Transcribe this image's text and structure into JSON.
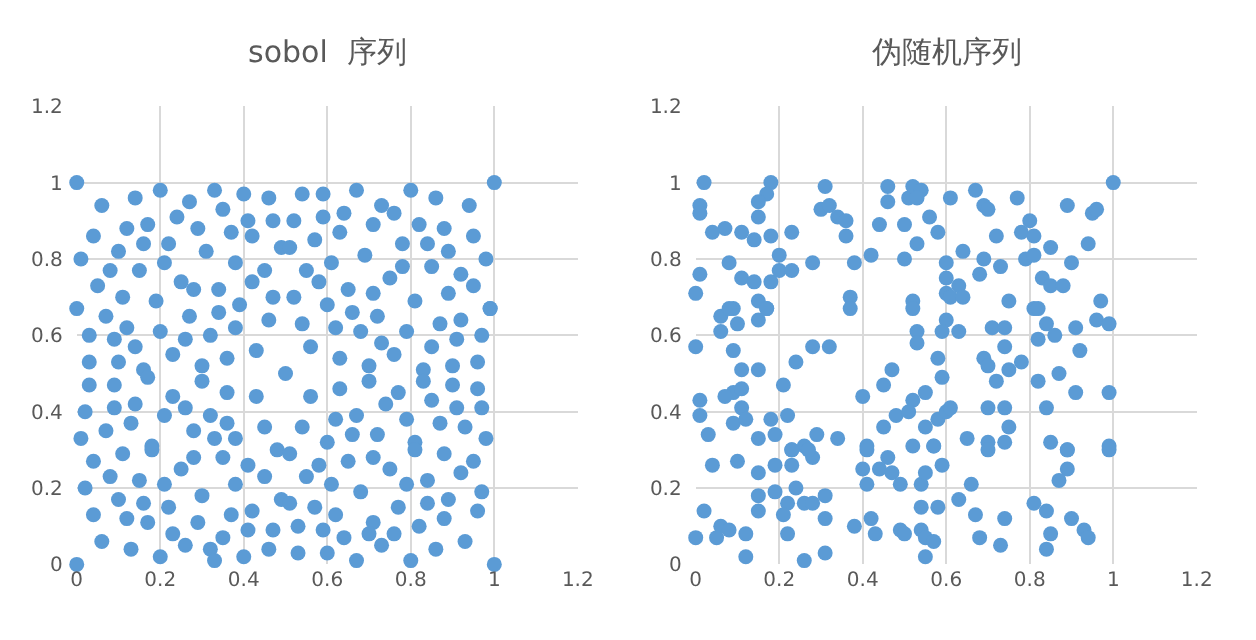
{
  "chart_data": [
    {
      "type": "scatter",
      "title": "sobol  序列",
      "xlim": [
        0,
        1.2
      ],
      "ylim": [
        0,
        1.2
      ],
      "xticks": [
        0,
        0.2,
        0.4,
        0.6,
        0.8,
        1,
        1.2
      ],
      "yticks": [
        0,
        0.2,
        0.4,
        0.6,
        0.8,
        1,
        1.2
      ],
      "grid": true,
      "marker": "circle",
      "series": [
        {
          "color": "#5b9bd5",
          "x": [
            0,
            1,
            0.06,
            0.14,
            0.2,
            0.27,
            0.33,
            0.4,
            0.46,
            0.54,
            0.59,
            0.67,
            0.73,
            0.8,
            0.86,
            0.94,
            0.04,
            0.12,
            0.17,
            0.24,
            0.29,
            0.35,
            0.41,
            0.47,
            0.52,
            0.59,
            0.64,
            0.71,
            0.76,
            0.82,
            0.88,
            0.95,
            0.1,
            0.16,
            0.22,
            0.31,
            0.37,
            0.42,
            0.49,
            0.51,
            0.57,
            0.63,
            0.69,
            0.78,
            0.84,
            0.89,
            0.98,
            0.01,
            0.08,
            0.15,
            0.21,
            0.25,
            0.28,
            0.34,
            0.38,
            0.42,
            0.45,
            0.47,
            0.52,
            0.55,
            0.58,
            0.61,
            0.65,
            0.71,
            0.75,
            0.78,
            0.81,
            0.85,
            0.89,
            0.92,
            0.95,
            0.05,
            0.11,
            0.19,
            0.6,
            0,
            0.99,
            0.39,
            0.07,
            0.12,
            0.27,
            0.34,
            0.46,
            0.54,
            0.66,
            0.72,
            0.87,
            0.92,
            0.99,
            0.03,
            0.09,
            0.14,
            0.2,
            0.26,
            0.32,
            0.38,
            0.62,
            0.68,
            0.73,
            0.79,
            0.85,
            0.91,
            0.97,
            0.03,
            0.1,
            0.16,
            0.23,
            0.3,
            0.36,
            0.43,
            0.56,
            0.63,
            0.7,
            0.76,
            0.83,
            0.9,
            0.96,
            0.03,
            0.09,
            0.17,
            0.3,
            0.36,
            0.5,
            0.63,
            0.7,
            0.77,
            0.83,
            0.9,
            0.96,
            0.02,
            0.09,
            0.14,
            0.23,
            0.26,
            0.43,
            0.56,
            0.74,
            0.85,
            0.91,
            0.97,
            0.07,
            0.13,
            0.21,
            0.28,
            0.32,
            0.36,
            0.45,
            0.54,
            0.62,
            0.67,
            0.72,
            0.79,
            0.87,
            0.93,
            0.01,
            0.33,
            0.38,
            0.6,
            0.66,
            0.81,
            0.98,
            0.18,
            0.04,
            0.11,
            0.18,
            0.25,
            0.28,
            0.35,
            0.41,
            0.48,
            0.51,
            0.45,
            0.55,
            0.58,
            0.65,
            0.71,
            0.75,
            0.81,
            0.88,
            0.92,
            0.95,
            0.08,
            0.15,
            0.02,
            0.21,
            0.3,
            0.38,
            0.49,
            0.51,
            0.61,
            0.68,
            0.79,
            0.84,
            0.97,
            0.04,
            0.1,
            0.16,
            0.22,
            0.29,
            0.37,
            0.42,
            0.57,
            0.62,
            0.71,
            0.77,
            0.84,
            0.89,
            0.96,
            0.12,
            0.17,
            0.23,
            0.26,
            0.35,
            0.41,
            0.47,
            0.53,
            0.59,
            0.64,
            0.7,
            0.76,
            0.82,
            0.88,
            0.06,
            0.13,
            0.32,
            0.4,
            0.46,
            0.53,
            0.6,
            0.73,
            0.86,
            0.93,
            0,
            0.2,
            0.33,
            0.67,
            0.8,
            1
          ],
          "values": [
            1,
            1,
            0.94,
            0.96,
            0.98,
            0.95,
            0.98,
            0.97,
            0.96,
            0.97,
            0.97,
            0.98,
            0.94,
            0.98,
            0.96,
            0.94,
            0.86,
            0.88,
            0.89,
            0.91,
            0.88,
            0.93,
            0.9,
            0.9,
            0.9,
            0.91,
            0.92,
            0.89,
            0.92,
            0.89,
            0.88,
            0.86,
            0.82,
            0.84,
            0.84,
            0.82,
            0.87,
            0.86,
            0.83,
            0.83,
            0.85,
            0.87,
            0.81,
            0.84,
            0.84,
            0.82,
            0.8,
            0.8,
            0.77,
            0.77,
            0.79,
            0.74,
            0.72,
            0.72,
            0.79,
            0.74,
            0.77,
            0.7,
            0.7,
            0.77,
            0.74,
            0.79,
            0.72,
            0.71,
            0.75,
            0.78,
            0.69,
            0.78,
            0.71,
            0.76,
            0.73,
            0.73,
            0.7,
            0.69,
            0.68,
            0.67,
            0.67,
            0.68,
            0.65,
            0.62,
            0.65,
            0.66,
            0.64,
            0.63,
            0.66,
            0.65,
            0.63,
            0.64,
            0.67,
            0.6,
            0.59,
            0.57,
            0.61,
            0.59,
            0.6,
            0.62,
            0.62,
            0.61,
            0.58,
            0.61,
            0.57,
            0.59,
            0.6,
            0.53,
            0.53,
            0.51,
            0.55,
            0.52,
            0.54,
            0.56,
            0.57,
            0.54,
            0.52,
            0.55,
            0.51,
            0.52,
            0.53,
            0.47,
            0.47,
            0.49,
            0.48,
            0.45,
            0.5,
            0.46,
            0.48,
            0.45,
            0.48,
            0.47,
            0.46,
            0.4,
            0.41,
            0.42,
            0.44,
            0.41,
            0.44,
            0.44,
            0.42,
            0.43,
            0.41,
            0.41,
            0.35,
            0.37,
            0.39,
            0.35,
            0.39,
            0.37,
            0.36,
            0.36,
            0.38,
            0.39,
            0.34,
            0.38,
            0.37,
            0.36,
            0.33,
            0.33,
            0.33,
            0.32,
            0.34,
            0.32,
            0.33,
            0.31,
            0.27,
            0.29,
            0.3,
            0.25,
            0.28,
            0.28,
            0.26,
            0.3,
            0.29,
            0.23,
            0.23,
            0.26,
            0.27,
            0.28,
            0.25,
            0.3,
            0.29,
            0.24,
            0.27,
            0.23,
            0.22,
            0.2,
            0.21,
            0.18,
            0.21,
            0.17,
            0.16,
            0.21,
            0.19,
            0.21,
            0.22,
            0.19,
            0.13,
            0.17,
            0.16,
            0.15,
            0.11,
            0.13,
            0.14,
            0.15,
            0.13,
            0.11,
            0.15,
            0.16,
            0.17,
            0.14,
            0.12,
            0.11,
            0.08,
            0.05,
            0.07,
            0.09,
            0.09,
            0.1,
            0.09,
            0.07,
            0.08,
            0.08,
            0.1,
            0.12,
            0.06,
            0.04,
            0.04,
            0.02,
            0.04,
            0.03,
            0.03,
            0.05,
            0.04,
            0.06,
            0,
            0.02,
            0.01,
            0.01,
            0.01,
            0
          ]
        }
      ]
    },
    {
      "type": "scatter",
      "title": "伪随机序列",
      "xlim": [
        0,
        1.2
      ],
      "ylim": [
        0,
        1.2
      ],
      "xticks": [
        0,
        0.2,
        0.4,
        0.6,
        0.8,
        1,
        1.2
      ],
      "yticks": [
        0,
        0.2,
        0.4,
        0.6,
        0.8,
        1,
        1.2
      ],
      "grid": true,
      "marker": "circle",
      "series": [
        {
          "color": "#5b9bd5",
          "x": [
            0.02,
            0.18,
            0.17,
            0.15,
            0.01,
            0.01,
            0.31,
            0.3,
            0.32,
            0.34,
            0.36,
            0.36,
            0.46,
            0.46,
            0.51,
            0.52,
            0.54,
            0.53,
            0.61,
            0.67,
            0.69,
            0.7,
            0.77,
            0.89,
            0.95,
            0.96,
            1,
            0.04,
            0.07,
            0.11,
            0.15,
            0.14,
            0.18,
            0.23,
            0.44,
            0.5,
            0.56,
            0.58,
            0.53,
            0.72,
            0.78,
            0.8,
            0.81,
            0.85,
            0.94,
            0.01,
            0,
            0.08,
            0.11,
            0.14,
            0.18,
            0.2,
            0.2,
            0.23,
            0.28,
            0.38,
            0.42,
            0.5,
            0.64,
            0.6,
            0.6,
            0.6,
            0.63,
            0.61,
            0.64,
            0.68,
            0.69,
            0.73,
            0.79,
            0.81,
            0.83,
            0.85,
            0.88,
            0.9,
            0.75,
            0.81,
            0.97,
            0.37,
            0.15,
            0.09,
            0.17,
            0.52,
            0.06,
            0.06,
            0.08,
            0.1,
            0.15,
            0.17,
            0.37,
            0.52,
            0.6,
            0.53,
            0.59,
            0.63,
            0.71,
            0.74,
            0.82,
            0.84,
            0.82,
            0.86,
            0.91,
            0.96,
            0.99,
            0,
            0.09,
            0.11,
            0.15,
            0.28,
            0.32,
            0.24,
            0.53,
            0.58,
            0.47,
            0.45,
            0.59,
            0.55,
            0.69,
            0.7,
            0.75,
            0.72,
            0.74,
            0.78,
            0.87,
            0.92,
            0.82,
            0.91,
            0.99,
            0.09,
            0.11,
            0.07,
            0.01,
            0.21,
            0.4,
            0.52,
            0.7,
            0.74,
            0.84,
            0.11,
            0.01,
            0.09,
            0.12,
            0.18,
            0.22,
            0.45,
            0.48,
            0.51,
            0.55,
            0.58,
            0.6,
            0.61,
            0.03,
            0.15,
            0.19,
            0.29,
            0.34,
            0.41,
            0.52,
            0.57,
            0.65,
            0.7,
            0.75,
            0.74,
            0.85,
            0.89,
            0.99,
            0.23,
            0.26,
            0.04,
            0.1,
            0.15,
            0.19,
            0.23,
            0.23,
            0.28,
            0.27,
            0.41,
            0.4,
            0.44,
            0.46,
            0.47,
            0.41,
            0.49,
            0.54,
            0.55,
            0.59,
            0.57,
            0.7,
            0.89,
            0.89,
            0.87,
            0.99,
            0.19,
            0.24,
            0.31,
            0.15,
            0.22,
            0.26,
            0.28,
            0.66,
            0.63,
            0.81,
            0.84,
            0.02,
            0.15,
            0.21,
            0.31,
            0.54,
            0.58,
            0.38,
            0.42,
            0.67,
            0.74,
            0.9,
            0,
            0.06,
            0.05,
            0.08,
            0.12,
            0.22,
            0.43,
            0.49,
            0.5,
            0.54,
            0.55,
            0.93,
            0.94,
            0.85,
            0.68,
            0.73,
            0.57,
            0.84,
            0.12,
            0.26,
            0.31,
            0.55
          ],
          "values": [
            1,
            1,
            0.97,
            0.95,
            0.94,
            0.92,
            0.99,
            0.93,
            0.94,
            0.91,
            0.9,
            0.86,
            0.99,
            0.95,
            0.96,
            0.99,
            0.98,
            0.96,
            0.96,
            0.98,
            0.94,
            0.93,
            0.96,
            0.94,
            0.92,
            0.93,
            1,
            0.87,
            0.88,
            0.87,
            0.91,
            0.85,
            0.86,
            0.87,
            0.89,
            0.89,
            0.91,
            0.87,
            0.84,
            0.86,
            0.87,
            0.9,
            0.86,
            0.83,
            0.84,
            0.76,
            0.71,
            0.79,
            0.75,
            0.74,
            0.74,
            0.81,
            0.77,
            0.77,
            0.79,
            0.79,
            0.81,
            0.8,
            0.82,
            0.79,
            0.75,
            0.71,
            0.73,
            0.7,
            0.7,
            0.76,
            0.8,
            0.78,
            0.8,
            0.81,
            0.75,
            0.73,
            0.73,
            0.79,
            0.69,
            0.67,
            0.69,
            0.7,
            0.69,
            0.67,
            0.67,
            0.69,
            0.65,
            0.61,
            0.67,
            0.63,
            0.64,
            0.67,
            0.67,
            0.67,
            0.64,
            0.61,
            0.61,
            0.61,
            0.62,
            0.62,
            0.67,
            0.63,
            0.59,
            0.6,
            0.62,
            0.64,
            0.63,
            0.57,
            0.56,
            0.51,
            0.51,
            0.57,
            0.57,
            0.53,
            0.58,
            0.54,
            0.51,
            0.47,
            0.49,
            0.45,
            0.54,
            0.52,
            0.51,
            0.48,
            0.57,
            0.53,
            0.5,
            0.56,
            0.48,
            0.45,
            0.45,
            0.45,
            0.46,
            0.44,
            0.43,
            0.47,
            0.44,
            0.43,
            0.41,
            0.41,
            0.41,
            0.41,
            0.39,
            0.37,
            0.38,
            0.38,
            0.39,
            0.36,
            0.39,
            0.4,
            0.36,
            0.38,
            0.4,
            0.41,
            0.34,
            0.33,
            0.34,
            0.34,
            0.33,
            0.31,
            0.31,
            0.31,
            0.33,
            0.32,
            0.36,
            0.32,
            0.32,
            0.3,
            0.31,
            0.3,
            0.31,
            0.26,
            0.27,
            0.24,
            0.26,
            0.3,
            0.26,
            0.28,
            0.3,
            0.3,
            0.25,
            0.25,
            0.28,
            0.24,
            0.21,
            0.21,
            0.21,
            0.24,
            0.26,
            0.31,
            0.3,
            0.3,
            0.25,
            0.22,
            0.3,
            0.19,
            0.2,
            0.18,
            0.18,
            0.16,
            0.16,
            0.16,
            0.21,
            0.17,
            0.16,
            0.14,
            0.14,
            0.14,
            0.13,
            0.12,
            0.15,
            0.15,
            0.1,
            0.12,
            0.13,
            0.12,
            0.12,
            0.07,
            0.1,
            0.07,
            0.09,
            0.08,
            0.08,
            0.08,
            0.09,
            0.08,
            0.09,
            0.07,
            0.09,
            0.07,
            0.08,
            0.07,
            0.05,
            0.06,
            0.04,
            0.02,
            0.01,
            0.03,
            0.02
          ]
        }
      ]
    }
  ]
}
